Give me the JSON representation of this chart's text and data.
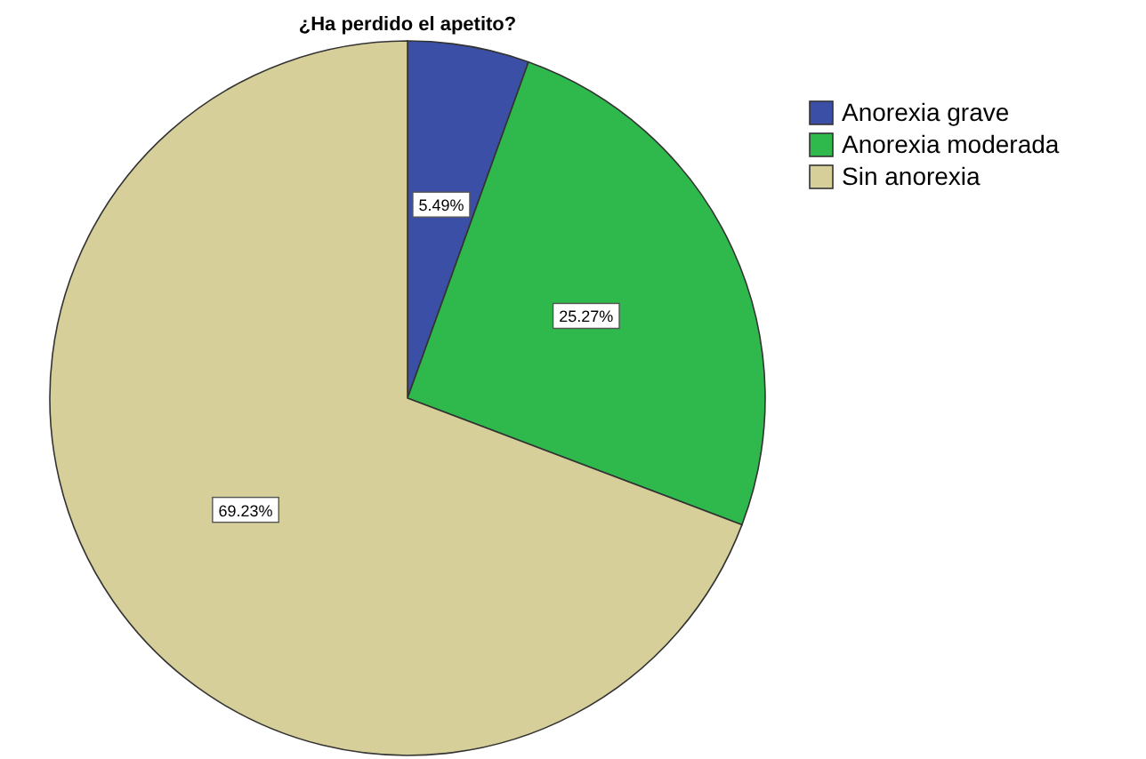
{
  "chart_data": {
    "type": "pie",
    "title": "¿Ha perdido el apetito?",
    "categories": [
      "Anorexia grave",
      "Anorexia moderada",
      "Sin anorexia"
    ],
    "values": [
      5.49,
      25.27,
      69.23
    ],
    "value_labels": [
      "5.49%",
      "25.27%",
      "69.23%"
    ],
    "colors": [
      "#3c4fa6",
      "#2fb84b",
      "#d6cf9a"
    ],
    "legend": "right"
  }
}
